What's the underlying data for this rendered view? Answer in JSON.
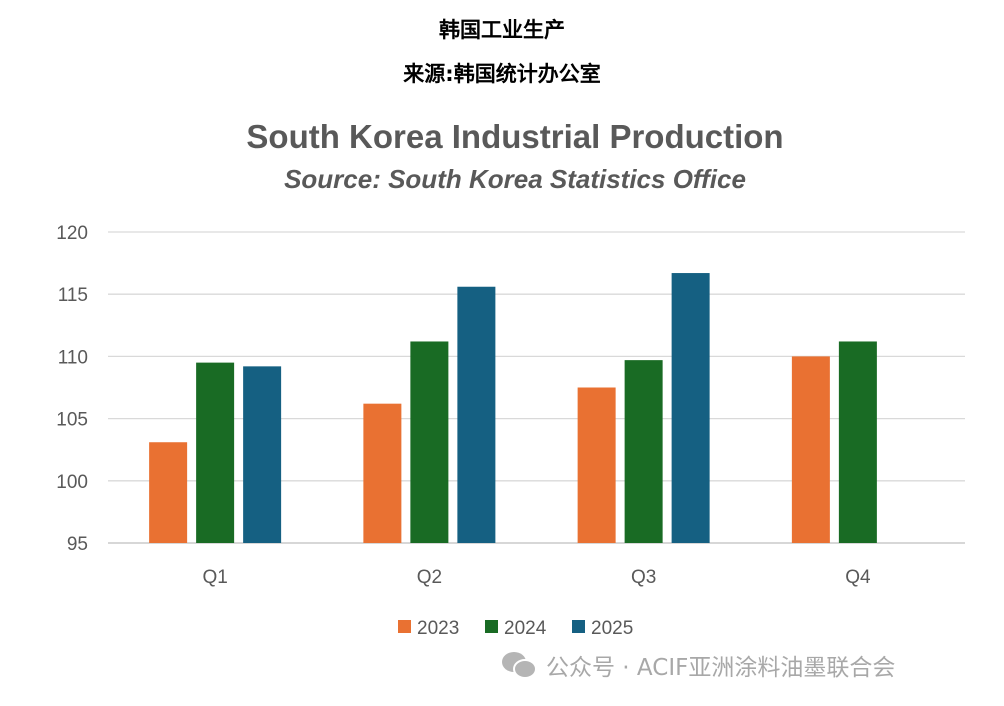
{
  "header": {
    "line1": "韩国工业生产",
    "line2": "来源:韩国统计办公室"
  },
  "watermark": {
    "text": "公众号 · ACIF亚洲涂料油墨联合会"
  },
  "chart_data": {
    "type": "bar",
    "title": "South Korea Industrial Production",
    "subtitle": "Source:  South Korea Statistics Office",
    "categories": [
      "Q1",
      "Q2",
      "Q3",
      "Q4"
    ],
    "series": [
      {
        "name": "2023",
        "color": "#E97132",
        "values": [
          103.1,
          106.2,
          107.5,
          110.0
        ]
      },
      {
        "name": "2024",
        "color": "#196B24",
        "values": [
          109.5,
          111.2,
          109.7,
          111.2
        ]
      },
      {
        "name": "2025",
        "color": "#156082",
        "values": [
          109.2,
          115.6,
          116.7,
          null
        ]
      }
    ],
    "ylim": [
      95,
      120
    ],
    "yticks": [
      "95",
      "100",
      "105",
      "110",
      "115",
      "120"
    ],
    "grid": true,
    "legend": "bottom"
  }
}
